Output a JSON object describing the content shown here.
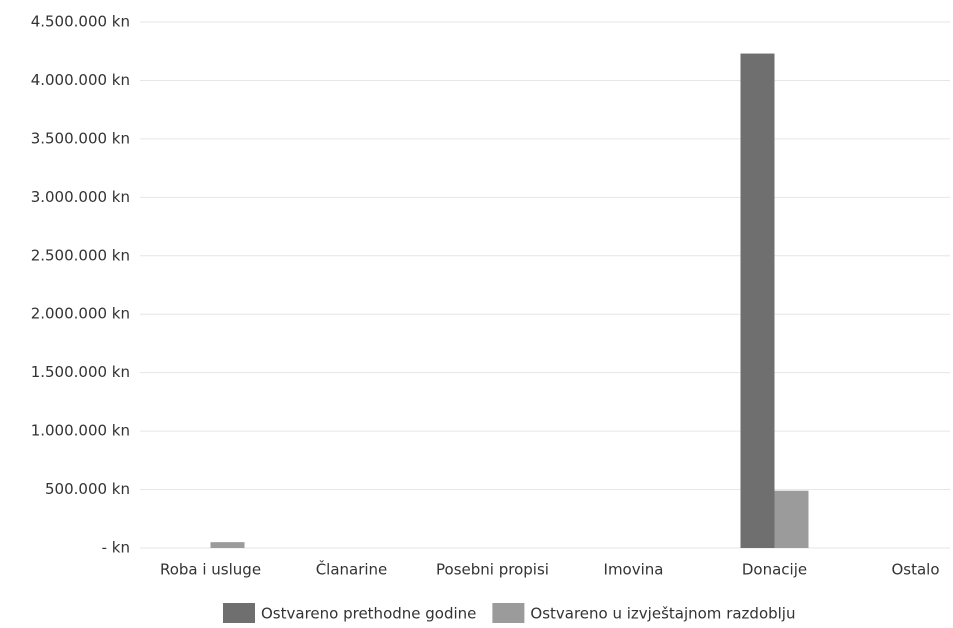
{
  "chart_data": {
    "type": "bar",
    "categories": [
      "Roba i usluge",
      "Članarine",
      "Posebni propisi",
      "Imovina",
      "Donacije",
      "Ostalo"
    ],
    "series": [
      {
        "name": "Ostvareno prethodne godine",
        "color": "#6f6f6f",
        "values": [
          0,
          0,
          0,
          0,
          4230000,
          0
        ]
      },
      {
        "name": "Ostvareno u izvještajnom razdoblju",
        "color": "#9b9b9b",
        "values": [
          50000,
          0,
          0,
          0,
          490000,
          0
        ]
      }
    ],
    "ylim": [
      0,
      4500000
    ],
    "yticks": [
      {
        "value": 0,
        "label": "- kn"
      },
      {
        "value": 500000,
        "label": "500.000 kn"
      },
      {
        "value": 1000000,
        "label": "1.000.000 kn"
      },
      {
        "value": 1500000,
        "label": "1.500.000 kn"
      },
      {
        "value": 2000000,
        "label": "2.000.000 kn"
      },
      {
        "value": 2500000,
        "label": "2.500.000 kn"
      },
      {
        "value": 3000000,
        "label": "3.000.000 kn"
      },
      {
        "value": 3500000,
        "label": "3.500.000 kn"
      },
      {
        "value": 4000000,
        "label": "4.000.000 kn"
      },
      {
        "value": 4500000,
        "label": "4.500.000 kn"
      }
    ],
    "grid": true,
    "legend": "bottom"
  }
}
